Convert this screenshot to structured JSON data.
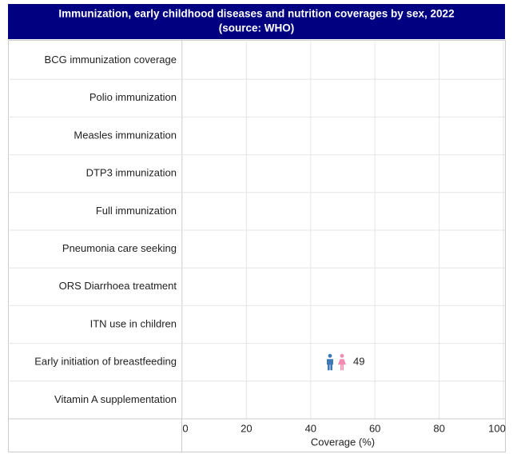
{
  "chart_data": {
    "type": "bar",
    "title": "Immunization, early childhood diseases and nutrition coverages by sex, 2022",
    "subtitle": "(source: WHO)",
    "categories": [
      "BCG immunization coverage",
      "Polio immunization",
      "Measles immunization",
      "DTP3 immunization",
      "Full immunization",
      "Pneumonia care seeking",
      "ORS Diarrhoea treatment",
      "ITN use in children",
      "Early initiation of breastfeeding",
      "Vitamin A supplementation"
    ],
    "values": [
      null,
      null,
      null,
      null,
      null,
      null,
      null,
      null,
      49,
      null
    ],
    "colors": [
      "#3b78b5",
      "#f28cb1"
    ],
    "xlabel": "Coverage (%)",
    "xlim": [
      0,
      100
    ],
    "xticks": [
      0,
      20,
      40,
      60,
      80,
      100
    ],
    "grid": true
  }
}
